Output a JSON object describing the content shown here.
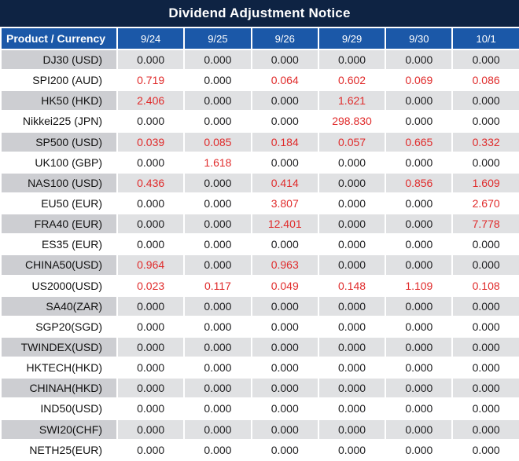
{
  "title": "Dividend Adjustment Notice",
  "colors": {
    "banner": "#0e2343",
    "header": "#1b58a8",
    "row_gray_product": "#cdced2",
    "row_gray_value": "#e0e1e3",
    "red": "#e02b2b",
    "text": "#1d1d1f"
  },
  "table": {
    "product_header": "Product / Currency",
    "date_headers": [
      "9/24",
      "9/25",
      "9/26",
      "9/29",
      "9/30",
      "10/1"
    ],
    "zero_value": "0.000",
    "rows": [
      {
        "product": "DJ30 (USD)",
        "values": [
          "0.000",
          "0.000",
          "0.000",
          "0.000",
          "0.000",
          "0.000"
        ]
      },
      {
        "product": "SPI200 (AUD)",
        "values": [
          "0.719",
          "0.000",
          "0.064",
          "0.602",
          "0.069",
          "0.086"
        ]
      },
      {
        "product": "HK50 (HKD)",
        "values": [
          "2.406",
          "0.000",
          "0.000",
          "1.621",
          "0.000",
          "0.000"
        ]
      },
      {
        "product": "Nikkei225 (JPN)",
        "values": [
          "0.000",
          "0.000",
          "0.000",
          "298.830",
          "0.000",
          "0.000"
        ]
      },
      {
        "product": "SP500 (USD)",
        "values": [
          "0.039",
          "0.085",
          "0.184",
          "0.057",
          "0.665",
          "0.332"
        ]
      },
      {
        "product": "UK100 (GBP)",
        "values": [
          "0.000",
          "1.618",
          "0.000",
          "0.000",
          "0.000",
          "0.000"
        ]
      },
      {
        "product": "NAS100 (USD)",
        "values": [
          "0.436",
          "0.000",
          "0.414",
          "0.000",
          "0.856",
          "1.609"
        ]
      },
      {
        "product": "EU50 (EUR)",
        "values": [
          "0.000",
          "0.000",
          "3.807",
          "0.000",
          "0.000",
          "2.670"
        ]
      },
      {
        "product": "FRA40 (EUR)",
        "values": [
          "0.000",
          "0.000",
          "12.401",
          "0.000",
          "0.000",
          "7.778"
        ]
      },
      {
        "product": "ES35 (EUR)",
        "values": [
          "0.000",
          "0.000",
          "0.000",
          "0.000",
          "0.000",
          "0.000"
        ]
      },
      {
        "product": "CHINA50(USD)",
        "values": [
          "0.964",
          "0.000",
          "0.963",
          "0.000",
          "0.000",
          "0.000"
        ]
      },
      {
        "product": "US2000(USD)",
        "values": [
          "0.023",
          "0.117",
          "0.049",
          "0.148",
          "1.109",
          "0.108"
        ]
      },
      {
        "product": "SA40(ZAR)",
        "values": [
          "0.000",
          "0.000",
          "0.000",
          "0.000",
          "0.000",
          "0.000"
        ]
      },
      {
        "product": "SGP20(SGD)",
        "values": [
          "0.000",
          "0.000",
          "0.000",
          "0.000",
          "0.000",
          "0.000"
        ]
      },
      {
        "product": "TWINDEX(USD)",
        "values": [
          "0.000",
          "0.000",
          "0.000",
          "0.000",
          "0.000",
          "0.000"
        ]
      },
      {
        "product": "HKTECH(HKD)",
        "values": [
          "0.000",
          "0.000",
          "0.000",
          "0.000",
          "0.000",
          "0.000"
        ]
      },
      {
        "product": "CHINAH(HKD)",
        "values": [
          "0.000",
          "0.000",
          "0.000",
          "0.000",
          "0.000",
          "0.000"
        ]
      },
      {
        "product": "IND50(USD)",
        "values": [
          "0.000",
          "0.000",
          "0.000",
          "0.000",
          "0.000",
          "0.000"
        ]
      },
      {
        "product": "SWI20(CHF)",
        "values": [
          "0.000",
          "0.000",
          "0.000",
          "0.000",
          "0.000",
          "0.000"
        ]
      },
      {
        "product": "NETH25(EUR)",
        "values": [
          "0.000",
          "0.000",
          "0.000",
          "0.000",
          "0.000",
          "0.000"
        ]
      }
    ]
  }
}
